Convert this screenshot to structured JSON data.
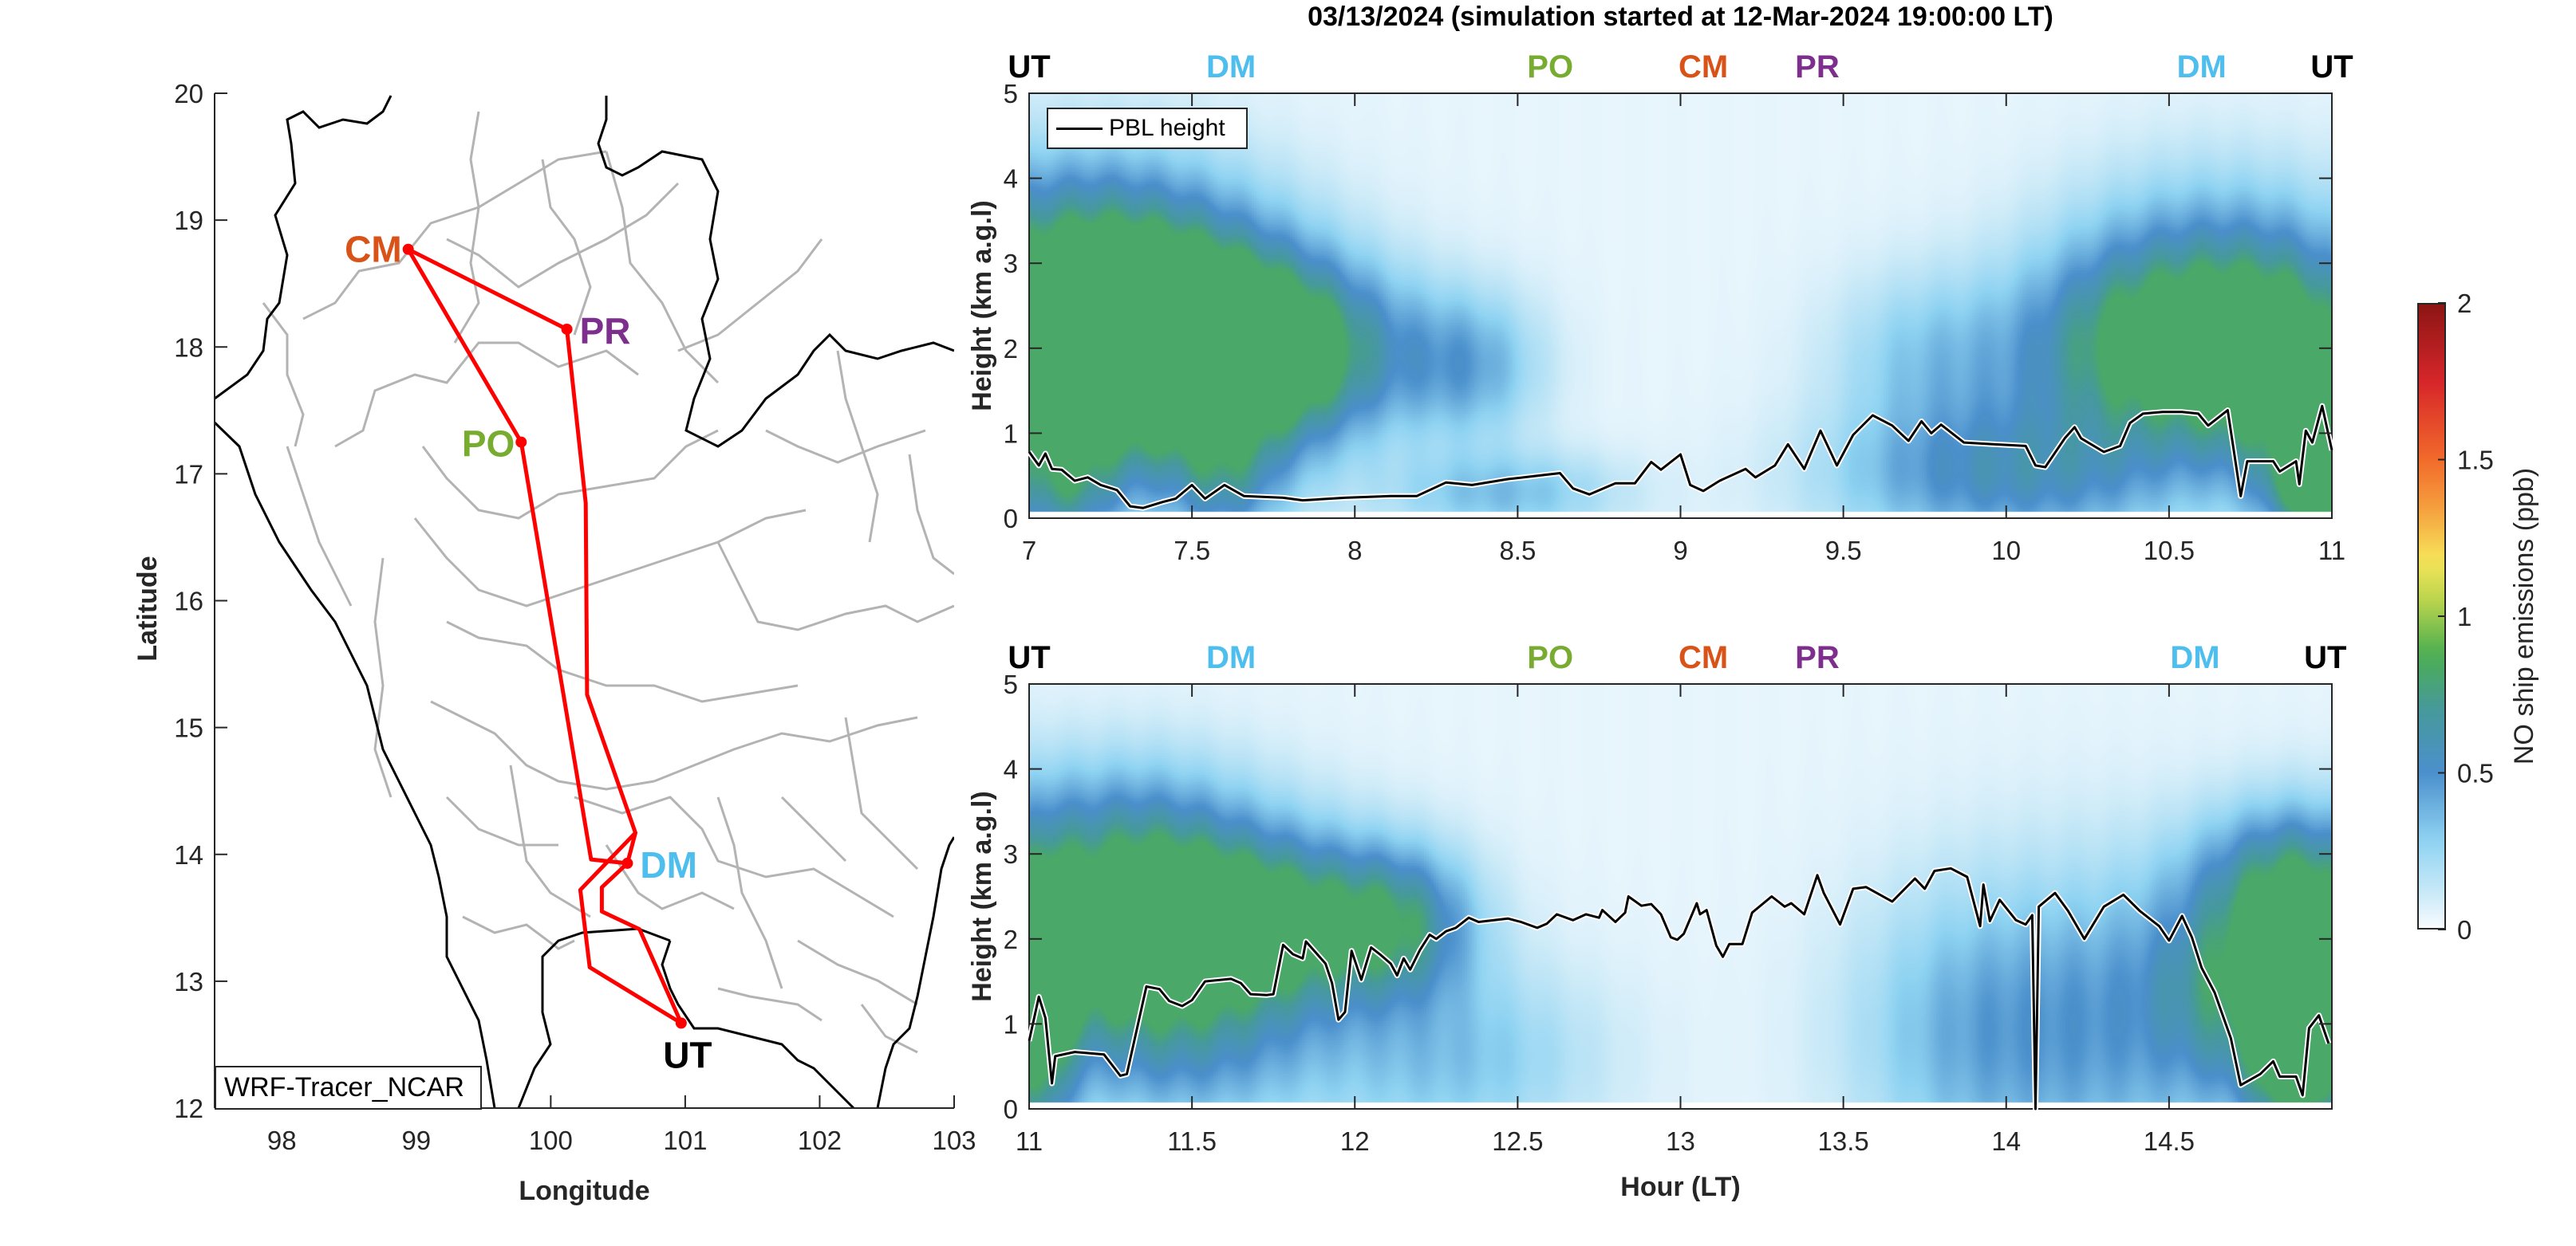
{
  "figure": {
    "title": "03/13/2024 (simulation started at 12-Mar-2024 19:00:00 LT)"
  },
  "map": {
    "xlabel": "Longitude",
    "ylabel": "Latitude",
    "xlim": [
      97.5,
      103
    ],
    "ylim": [
      12,
      20
    ],
    "xticks": [
      "98",
      "99",
      "100",
      "101",
      "102",
      "103"
    ],
    "yticks": [
      "12",
      "13",
      "14",
      "15",
      "16",
      "17",
      "18",
      "19",
      "20"
    ],
    "model_label": "WRF-Tracer_NCAR",
    "route_color": "#ff0000",
    "sites": [
      {
        "name": "CM",
        "lon": 98.94,
        "lat": 18.77,
        "color": "#d95319"
      },
      {
        "name": "PR",
        "lon": 100.12,
        "lat": 18.14,
        "color": "#7e2f8e"
      },
      {
        "name": "PO",
        "lon": 99.78,
        "lat": 17.25,
        "color": "#77ac30"
      },
      {
        "name": "DM",
        "lon": 100.57,
        "lat": 13.93,
        "color": "#4dbeee"
      },
      {
        "name": "UT",
        "lon": 100.97,
        "lat": 12.67,
        "color": "#000000"
      }
    ],
    "route": [
      [
        100.97,
        12.67
      ],
      [
        100.29,
        13.11
      ],
      [
        100.22,
        13.72
      ],
      [
        100.63,
        14.17
      ],
      [
        100.57,
        13.93
      ],
      [
        100.3,
        13.96
      ],
      [
        99.78,
        17.25
      ],
      [
        98.94,
        18.77
      ],
      [
        100.12,
        18.14
      ],
      [
        100.26,
        16.77
      ],
      [
        100.27,
        15.26
      ],
      [
        100.63,
        14.17
      ],
      [
        100.57,
        13.93
      ],
      [
        100.38,
        13.74
      ],
      [
        100.38,
        13.55
      ],
      [
        100.66,
        13.41
      ],
      [
        100.97,
        12.67
      ]
    ]
  },
  "colorbar": {
    "label": "NO ship emissions (ppb)",
    "range": [
      0,
      2
    ],
    "ticks": [
      "0",
      "0.5",
      "1",
      "1.5",
      "2"
    ],
    "colors": [
      "#f7fbff",
      "#c6e8f7",
      "#8fd3f2",
      "#4b8fcc",
      "#46999b",
      "#4caf50",
      "#b9d44d",
      "#f7e55a",
      "#f5a540",
      "#f26b2b",
      "#d7262a",
      "#8c1515"
    ]
  },
  "chart_data": [
    {
      "type": "heatmap",
      "title": "03/13/2024 (simulation started at 12-Mar-2024 19:00:00 LT)",
      "xlabel": "",
      "ylabel": "Height (km a.g.l)",
      "xlim": [
        7,
        11
      ],
      "ylim": [
        0,
        5
      ],
      "xticks": [
        "7",
        "7.5",
        "8",
        "8.5",
        "9",
        "9.5",
        "10",
        "10.5",
        "11"
      ],
      "yticks": [
        "0",
        "1",
        "2",
        "3",
        "4",
        "5"
      ],
      "legend": {
        "entries": [
          "PBL height"
        ],
        "placement": "top-left"
      },
      "site_markers": [
        {
          "name": "UT",
          "hour": 7.0,
          "color": "#000000"
        },
        {
          "name": "DM",
          "hour": 7.62,
          "color": "#4dbeee"
        },
        {
          "name": "PO",
          "hour": 8.6,
          "color": "#77ac30"
        },
        {
          "name": "CM",
          "hour": 9.07,
          "color": "#d95319"
        },
        {
          "name": "PR",
          "hour": 9.42,
          "color": "#7e2f8e"
        },
        {
          "name": "DM",
          "hour": 10.6,
          "color": "#4dbeee"
        },
        {
          "name": "UT",
          "hour": 11.0,
          "color": "#000000"
        }
      ],
      "concentration_blobs": [
        {
          "hour": 7.05,
          "height": 2.0,
          "value": 0.75,
          "sh": 0.35,
          "sz": 1.1
        },
        {
          "hour": 7.3,
          "height": 2.2,
          "value": 0.6,
          "sh": 0.3,
          "sz": 0.9
        },
        {
          "hour": 7.6,
          "height": 1.9,
          "value": 0.68,
          "sh": 0.25,
          "sz": 0.9
        },
        {
          "hour": 7.85,
          "height": 2.0,
          "value": 0.55,
          "sh": 0.25,
          "sz": 0.7
        },
        {
          "hour": 8.35,
          "height": 1.8,
          "value": 0.35,
          "sh": 0.15,
          "sz": 0.6
        },
        {
          "hour": 7.2,
          "height": 3.4,
          "value": 0.3,
          "sh": 0.35,
          "sz": 0.8
        },
        {
          "hour": 7.1,
          "height": 0.4,
          "value": 0.45,
          "sh": 0.12,
          "sz": 0.5
        },
        {
          "hour": 7.6,
          "height": 0.4,
          "value": 0.35,
          "sh": 0.12,
          "sz": 0.5
        },
        {
          "hour": 8.45,
          "height": 0.3,
          "value": 0.3,
          "sh": 0.25,
          "sz": 0.35
        },
        {
          "hour": 9.8,
          "height": 0.5,
          "value": 0.3,
          "sh": 0.3,
          "sz": 0.6
        },
        {
          "hour": 10.2,
          "height": 0.5,
          "value": 0.3,
          "sh": 0.3,
          "sz": 0.6
        },
        {
          "hour": 9.75,
          "height": 1.9,
          "value": 0.25,
          "sh": 0.2,
          "sz": 0.7
        },
        {
          "hour": 10.3,
          "height": 2.0,
          "value": 0.45,
          "sh": 0.25,
          "sz": 0.8
        },
        {
          "hour": 10.6,
          "height": 2.0,
          "value": 0.65,
          "sh": 0.25,
          "sz": 0.8
        },
        {
          "hour": 10.9,
          "height": 1.7,
          "value": 0.72,
          "sh": 0.2,
          "sz": 1.0
        },
        {
          "hour": 10.95,
          "height": 0.4,
          "value": 0.78,
          "sh": 0.1,
          "sz": 0.45
        },
        {
          "hour": 10.6,
          "height": 3.2,
          "value": 0.25,
          "sh": 0.3,
          "sz": 0.8
        }
      ],
      "series": [
        {
          "name": "PBL height",
          "x": [
            7.0,
            7.03,
            7.05,
            7.07,
            7.1,
            7.14,
            7.18,
            7.22,
            7.27,
            7.31,
            7.35,
            7.41,
            7.45,
            7.5,
            7.54,
            7.6,
            7.66,
            7.78,
            7.84,
            7.97,
            8.11,
            8.19,
            8.28,
            8.36,
            8.47,
            8.54,
            8.63,
            8.67,
            8.72,
            8.8,
            8.86,
            8.91,
            8.94,
            9.0,
            9.03,
            9.07,
            9.12,
            9.2,
            9.23,
            9.29,
            9.33,
            9.38,
            9.43,
            9.48,
            9.53,
            9.59,
            9.65,
            9.7,
            9.74,
            9.77,
            9.8,
            9.87,
            9.96,
            10.06,
            10.09,
            10.12,
            10.18,
            10.21,
            10.23,
            10.3,
            10.35,
            10.38,
            10.42,
            10.48,
            10.54,
            10.59,
            10.62,
            10.68,
            10.72,
            10.74,
            10.82,
            10.84,
            10.89,
            10.9,
            10.92,
            10.94,
            10.97,
            11.0
          ],
          "y": [
            0.78,
            0.62,
            0.76,
            0.58,
            0.57,
            0.44,
            0.48,
            0.39,
            0.33,
            0.14,
            0.12,
            0.19,
            0.23,
            0.39,
            0.23,
            0.39,
            0.26,
            0.24,
            0.21,
            0.24,
            0.26,
            0.26,
            0.42,
            0.39,
            0.46,
            0.49,
            0.53,
            0.35,
            0.28,
            0.41,
            0.41,
            0.66,
            0.57,
            0.75,
            0.39,
            0.32,
            0.44,
            0.58,
            0.48,
            0.62,
            0.87,
            0.58,
            1.03,
            0.62,
            0.98,
            1.21,
            1.09,
            0.91,
            1.14,
            1.0,
            1.1,
            0.89,
            0.87,
            0.85,
            0.62,
            0.6,
            0.94,
            1.07,
            0.94,
            0.78,
            0.85,
            1.12,
            1.23,
            1.25,
            1.25,
            1.23,
            1.09,
            1.27,
            0.26,
            0.67,
            0.67,
            0.55,
            0.67,
            0.4,
            1.03,
            0.89,
            1.32,
            0.8
          ]
        }
      ]
    },
    {
      "type": "heatmap",
      "xlabel": "Hour (LT)",
      "ylabel": "Height (km a.g.l)",
      "xlim": [
        11,
        15
      ],
      "ylim": [
        0,
        5
      ],
      "xticks": [
        "11",
        "11.5",
        "12",
        "12.5",
        "13",
        "13.5",
        "14",
        "14.5"
      ],
      "yticks": [
        "0",
        "1",
        "2",
        "3",
        "4",
        "5"
      ],
      "site_markers": [
        {
          "name": "UT",
          "hour": 11.0,
          "color": "#000000"
        },
        {
          "name": "DM",
          "hour": 11.62,
          "color": "#4dbeee"
        },
        {
          "name": "PO",
          "hour": 12.6,
          "color": "#77ac30"
        },
        {
          "name": "CM",
          "hour": 13.07,
          "color": "#d95319"
        },
        {
          "name": "PR",
          "hour": 13.42,
          "color": "#7e2f8e"
        },
        {
          "name": "DM",
          "hour": 14.58,
          "color": "#4dbeee"
        },
        {
          "name": "UT",
          "hour": 14.98,
          "color": "#000000"
        }
      ],
      "concentration_blobs": [
        {
          "hour": 11.02,
          "height": 1.2,
          "value": 0.8,
          "sh": 0.08,
          "sz": 1.2
        },
        {
          "hour": 11.2,
          "height": 2.0,
          "value": 0.65,
          "sh": 0.25,
          "sz": 0.9
        },
        {
          "hour": 11.5,
          "height": 2.1,
          "value": 0.68,
          "sh": 0.25,
          "sz": 0.8
        },
        {
          "hour": 11.85,
          "height": 2.2,
          "value": 0.62,
          "sh": 0.25,
          "sz": 0.7
        },
        {
          "hour": 12.15,
          "height": 2.2,
          "value": 0.45,
          "sh": 0.15,
          "sz": 0.6
        },
        {
          "hour": 11.3,
          "height": 3.3,
          "value": 0.3,
          "sh": 0.3,
          "sz": 0.7
        },
        {
          "hour": 11.5,
          "height": 0.6,
          "value": 0.3,
          "sh": 0.3,
          "sz": 0.7
        },
        {
          "hour": 12.3,
          "height": 0.6,
          "value": 0.28,
          "sh": 0.3,
          "sz": 0.8
        },
        {
          "hour": 13.85,
          "height": 0.9,
          "value": 0.27,
          "sh": 0.25,
          "sz": 1.2
        },
        {
          "hour": 14.3,
          "height": 1.0,
          "value": 0.35,
          "sh": 0.3,
          "sz": 1.3
        },
        {
          "hour": 14.75,
          "height": 1.5,
          "value": 0.62,
          "sh": 0.2,
          "sz": 0.9
        },
        {
          "hour": 14.95,
          "height": 1.9,
          "value": 0.6,
          "sh": 0.15,
          "sz": 0.9
        },
        {
          "hour": 14.9,
          "height": 0.4,
          "value": 0.8,
          "sh": 0.1,
          "sz": 0.5
        },
        {
          "hour": 14.85,
          "height": 2.8,
          "value": 0.35,
          "sh": 0.2,
          "sz": 0.6
        }
      ],
      "series": [
        {
          "name": "PBL height",
          "x": [
            11.0,
            11.03,
            11.05,
            11.07,
            11.08,
            11.14,
            11.23,
            11.28,
            11.3,
            11.36,
            11.4,
            11.43,
            11.47,
            11.5,
            11.54,
            11.62,
            11.65,
            11.68,
            11.73,
            11.75,
            11.78,
            11.81,
            11.84,
            11.85,
            11.88,
            11.91,
            11.93,
            11.95,
            11.97,
            11.99,
            12.02,
            12.05,
            12.08,
            12.11,
            12.13,
            12.15,
            12.17,
            12.2,
            12.23,
            12.25,
            12.28,
            12.31,
            12.35,
            12.38,
            12.47,
            12.51,
            12.56,
            12.59,
            12.62,
            12.67,
            12.71,
            12.75,
            12.76,
            12.8,
            12.83,
            12.84,
            12.88,
            12.91,
            12.94,
            12.97,
            12.99,
            13.01,
            13.05,
            13.06,
            13.08,
            13.11,
            13.13,
            13.15,
            13.19,
            13.22,
            13.28,
            13.32,
            13.34,
            13.38,
            13.42,
            13.44,
            13.49,
            13.53,
            13.57,
            13.65,
            13.72,
            13.75,
            13.78,
            13.83,
            13.88,
            13.92,
            13.93,
            13.95,
            13.98,
            14.03,
            14.06,
            14.08,
            14.09,
            14.1,
            14.15,
            14.19,
            14.24,
            14.3,
            14.36,
            14.41,
            14.47,
            14.5,
            14.54,
            14.57,
            14.6,
            14.64,
            14.69,
            14.72,
            14.78,
            14.82,
            14.84,
            14.89,
            14.91,
            14.93,
            14.96,
            14.99
          ],
          "y": [
            0.8,
            1.32,
            1.07,
            0.3,
            0.62,
            0.67,
            0.64,
            0.39,
            0.41,
            1.44,
            1.41,
            1.27,
            1.21,
            1.28,
            1.5,
            1.53,
            1.48,
            1.35,
            1.34,
            1.35,
            1.93,
            1.82,
            1.77,
            1.97,
            1.84,
            1.71,
            1.48,
            1.05,
            1.14,
            1.86,
            1.52,
            1.9,
            1.81,
            1.71,
            1.57,
            1.77,
            1.64,
            1.87,
            2.05,
            2.0,
            2.09,
            2.13,
            2.25,
            2.2,
            2.24,
            2.2,
            2.13,
            2.18,
            2.29,
            2.22,
            2.29,
            2.25,
            2.34,
            2.2,
            2.31,
            2.5,
            2.39,
            2.41,
            2.29,
            2.02,
            1.99,
            2.06,
            2.42,
            2.29,
            2.34,
            1.92,
            1.79,
            1.94,
            1.94,
            2.31,
            2.5,
            2.38,
            2.42,
            2.29,
            2.75,
            2.54,
            2.17,
            2.59,
            2.61,
            2.44,
            2.71,
            2.59,
            2.8,
            2.83,
            2.73,
            2.15,
            2.64,
            2.21,
            2.46,
            2.22,
            2.17,
            2.28,
            0.0,
            2.38,
            2.54,
            2.33,
            2.0,
            2.38,
            2.52,
            2.33,
            2.15,
            1.98,
            2.27,
            2.02,
            1.66,
            1.37,
            0.83,
            0.28,
            0.41,
            0.56,
            0.38,
            0.38,
            0.16,
            0.95,
            1.1,
            0.77
          ]
        }
      ]
    }
  ]
}
